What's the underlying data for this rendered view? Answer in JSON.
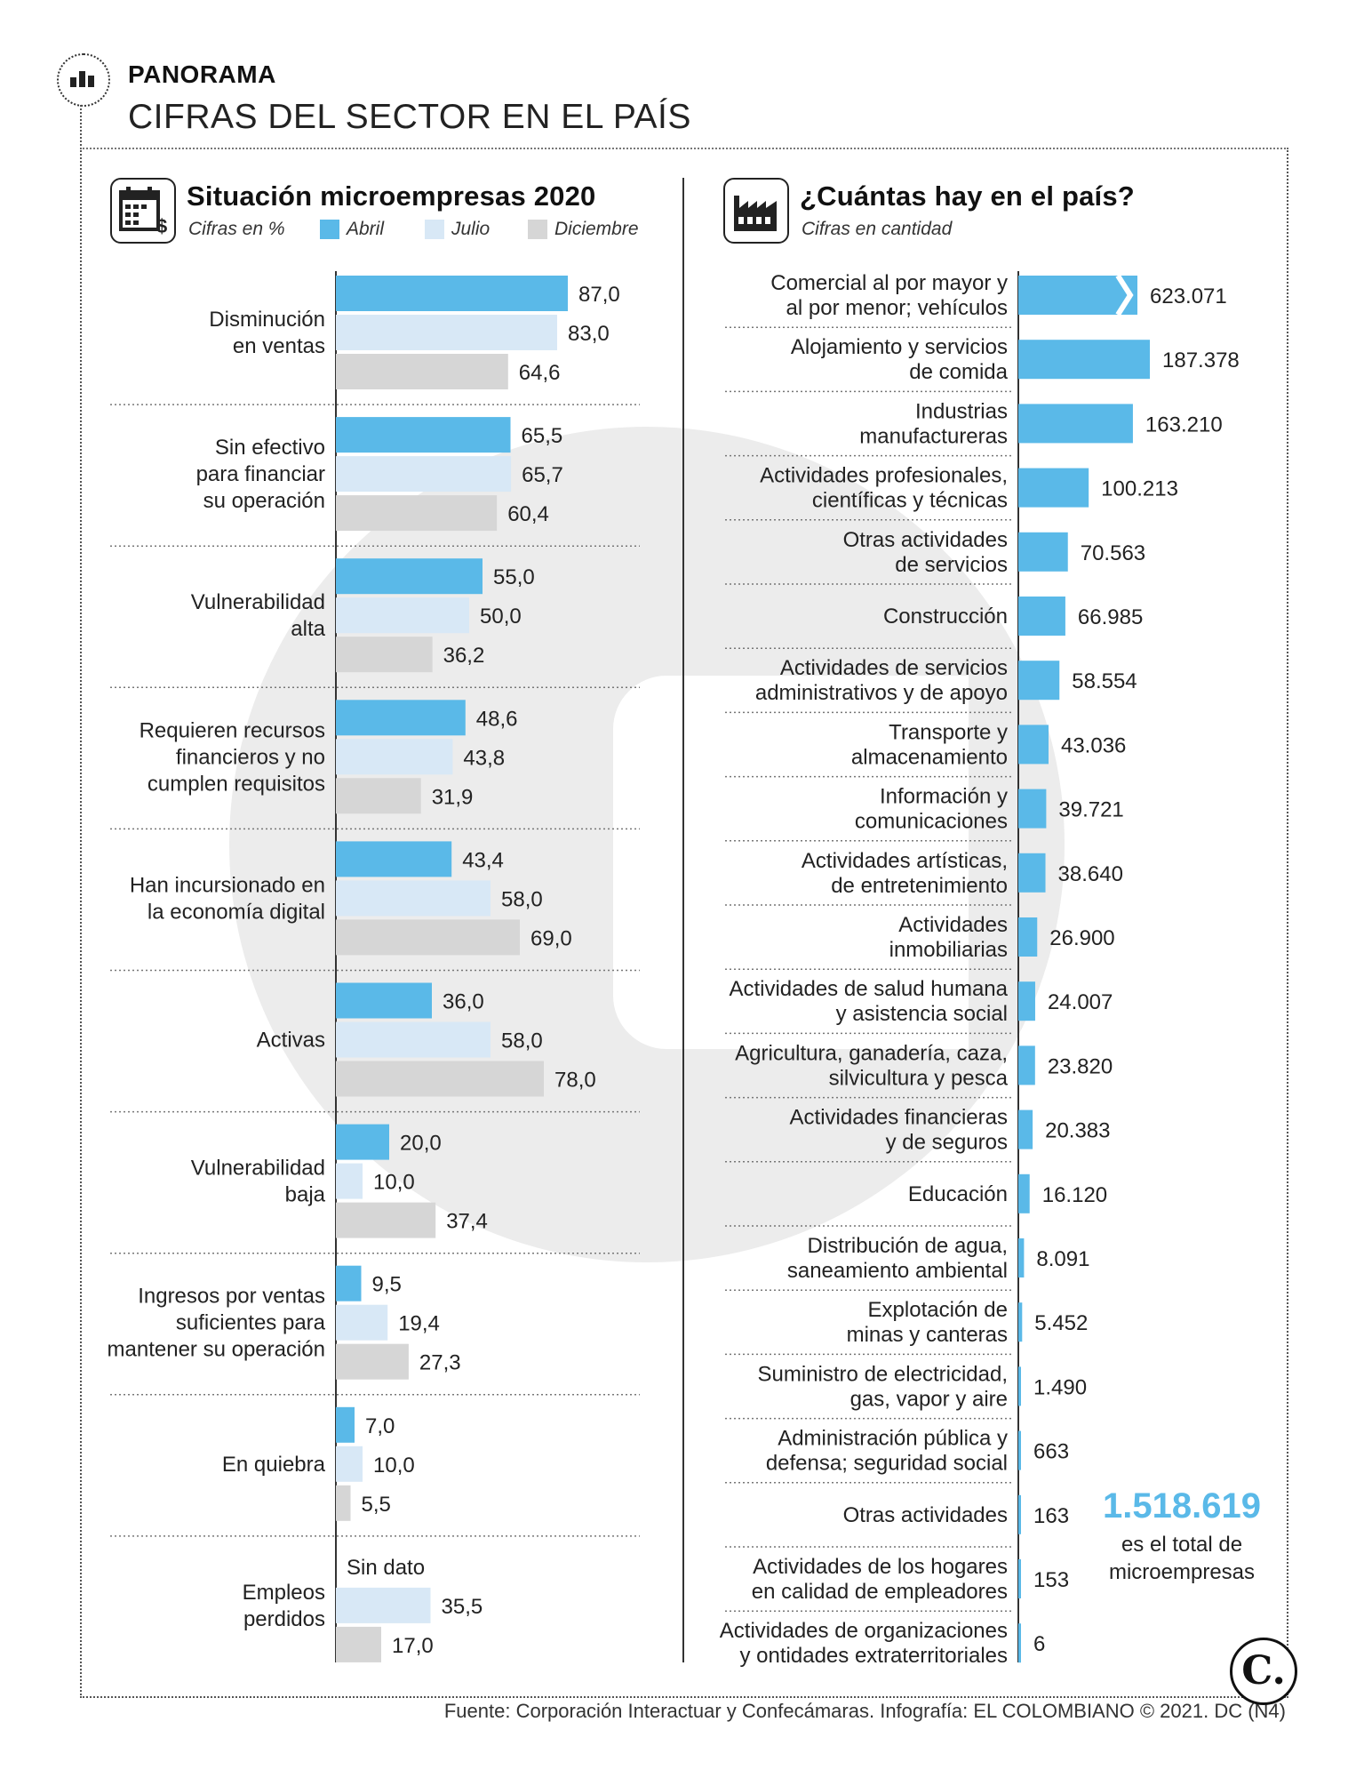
{
  "header": {
    "kicker": "PANORAMA",
    "headline": "CIFRAS DEL SECTOR EN EL PAÍS"
  },
  "left_panel": {
    "title": "Situación microempresas 2020",
    "subtitle": "Cifras en %",
    "icon": "calendar-dollar-icon"
  },
  "right_panel": {
    "title": "¿Cuántas hay en el país?",
    "subtitle": "Cifras en cantidad",
    "icon": "factory-icon"
  },
  "colors": {
    "abril": "#5ab9e8",
    "julio": "#d8e8f6",
    "diciembre": "#d6d6d6",
    "right_bar": "#5ab9e8"
  },
  "chart_data": [
    {
      "type": "bar",
      "orientation": "horizontal",
      "title": "Situación microempresas 2020",
      "subtitle": "Cifras en %",
      "legend_position": "top",
      "grid": false,
      "xlim": [
        0,
        100
      ],
      "categories": [
        [
          "Disminución",
          "en ventas"
        ],
        [
          "Sin efectivo",
          "para financiar",
          "su operación"
        ],
        [
          "Vulnerabilidad",
          "alta"
        ],
        [
          "Requieren recursos",
          "financieros y no",
          "cumplen requisitos"
        ],
        [
          "Han incursionado en",
          "la economía digital"
        ],
        [
          "Activas"
        ],
        [
          "Vulnerabilidad",
          "baja"
        ],
        [
          "Ingresos por ventas",
          "suficientes para",
          "mantener su operación"
        ],
        [
          "En quiebra"
        ],
        [
          "Empleos",
          "perdidos"
        ]
      ],
      "series": [
        {
          "name": "Abril",
          "values": [
            87.0,
            65.5,
            55.0,
            48.6,
            43.4,
            36.0,
            20.0,
            9.5,
            7.0,
            null
          ],
          "labels": [
            "87,0",
            "65,5",
            "55,0",
            "48,6",
            "43,4",
            "36,0",
            "20,0",
            "9,5",
            "7,0",
            "Sin dato"
          ]
        },
        {
          "name": "Julio",
          "values": [
            83.0,
            65.7,
            50.0,
            43.8,
            58.0,
            58.0,
            10.0,
            19.4,
            10.0,
            35.5
          ],
          "labels": [
            "83,0",
            "65,7",
            "50,0",
            "43,8",
            "58,0",
            "58,0",
            "10,0",
            "19,4",
            "10,0",
            "35,5"
          ]
        },
        {
          "name": "Diciembre",
          "values": [
            64.6,
            60.4,
            36.2,
            31.9,
            69.0,
            78.0,
            37.4,
            27.3,
            5.5,
            17.0
          ],
          "labels": [
            "64,6",
            "60,4",
            "36,2",
            "31,9",
            "69,0",
            "78,0",
            "37,4",
            "27,3",
            "5,5",
            "17,0"
          ]
        }
      ]
    },
    {
      "type": "bar",
      "orientation": "horizontal",
      "title": "¿Cuántas hay en el país?",
      "subtitle": "Cifras en cantidad",
      "grid": false,
      "broken_first_bar": true,
      "categories": [
        [
          "Comercial al por mayor y",
          "al por menor; vehículos"
        ],
        [
          "Alojamiento y servicios",
          "de comida"
        ],
        [
          "Industrias",
          "manufactureras"
        ],
        [
          "Actividades profesionales,",
          "científicas y técnicas"
        ],
        [
          "Otras actividades",
          "de servicios"
        ],
        [
          "Construcción"
        ],
        [
          "Actividades de servicios",
          "administrativos y de apoyo"
        ],
        [
          "Transporte y",
          "almacenamiento"
        ],
        [
          "Información y",
          "comunicaciones"
        ],
        [
          "Actividades artísticas,",
          "de entretenimiento"
        ],
        [
          "Actividades",
          "inmobiliarias"
        ],
        [
          "Actividades de salud humana",
          "y asistencia social"
        ],
        [
          "Agricultura, ganadería, caza,",
          "silvicultura y pesca"
        ],
        [
          "Actividades financieras",
          "y de seguros"
        ],
        [
          "Educación"
        ],
        [
          "Distribución de agua,",
          "saneamiento ambiental"
        ],
        [
          "Explotación de",
          "minas y canteras"
        ],
        [
          "Suministro de electricidad,",
          "gas, vapor y aire"
        ],
        [
          "Administración pública y",
          "defensa; seguridad social"
        ],
        [
          "Otras actividades"
        ],
        [
          "Actividades de los hogares",
          "en calidad de empleadores"
        ],
        [
          "Actividades de organizaciones",
          "y ontidades extraterritoriales"
        ]
      ],
      "values": [
        623071,
        187378,
        163210,
        100213,
        70563,
        66985,
        58554,
        43036,
        39721,
        38640,
        26900,
        24007,
        23820,
        20383,
        16120,
        8091,
        5452,
        1490,
        663,
        163,
        153,
        6
      ],
      "labels": [
        "623.071",
        "187.378",
        "163.210",
        "100.213",
        "70.563",
        "66.985",
        "58.554",
        "43.036",
        "39.721",
        "38.640",
        "26.900",
        "24.007",
        "23.820",
        "20.383",
        "16.120",
        "8.091",
        "5.452",
        "1.490",
        "663",
        "163",
        "153",
        "6"
      ],
      "total": {
        "value": "1.518.619",
        "caption": [
          "es el total de",
          "microempresas"
        ]
      }
    }
  ],
  "source": "Fuente: Corporación Interactuar y Confecámaras. Infografía: EL COLOMBIANO © 2021. DC (N4)",
  "logo": "C."
}
